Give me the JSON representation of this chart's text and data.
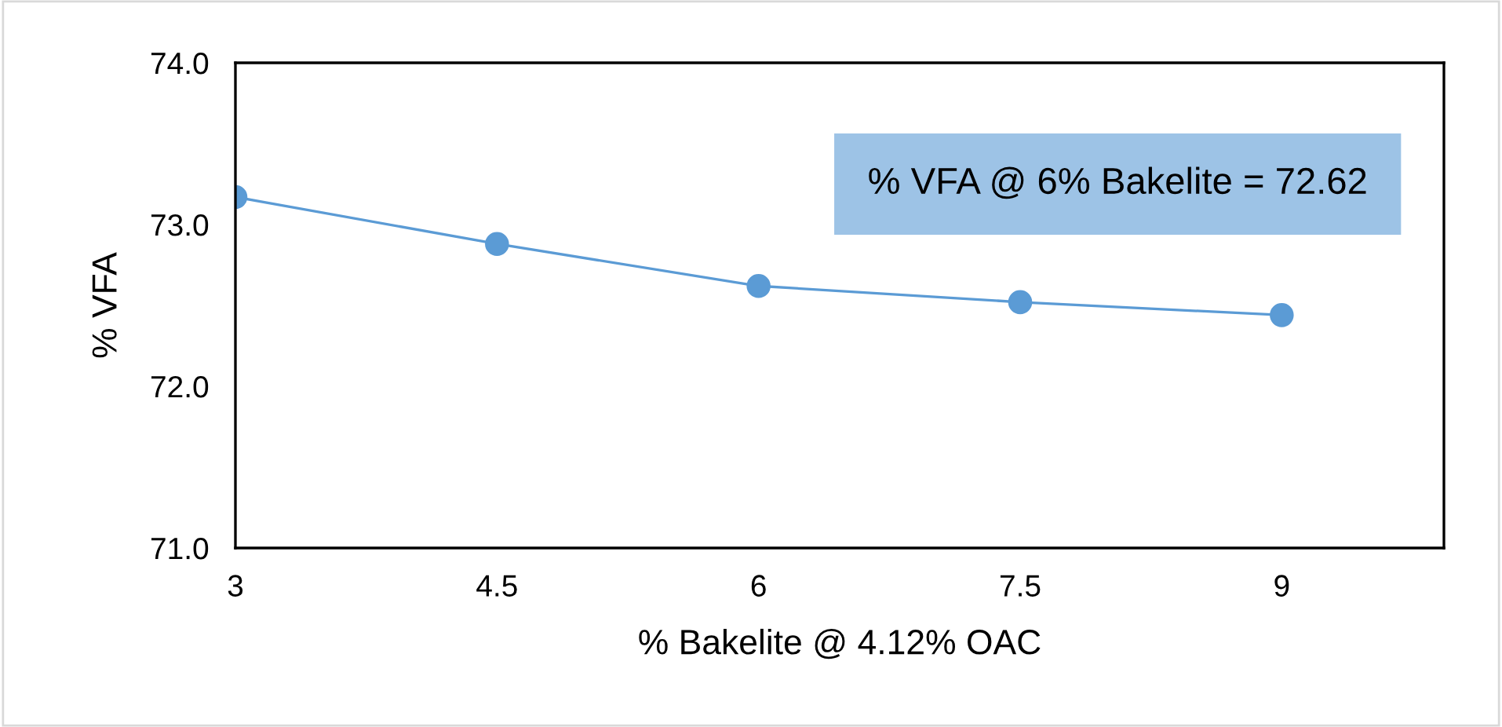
{
  "chart_data": {
    "type": "line",
    "xlabel": "% Bakelite @ 4.12% OAC",
    "ylabel": "% VFA",
    "categories": [
      "3",
      "4.5",
      "6",
      "7.5",
      "9"
    ],
    "series": [
      {
        "color": "#5b9bd5",
        "values": [
          73.17,
          72.88,
          72.62,
          72.52,
          72.44
        ]
      }
    ],
    "ylim": [
      71.0,
      74.0
    ],
    "yticks": [
      {
        "value": 71,
        "label": "71.0"
      },
      {
        "value": 72,
        "label": "72.0"
      },
      {
        "value": 73,
        "label": "73.0"
      },
      {
        "value": 74,
        "label": "74.0"
      }
    ],
    "marker": "circle",
    "grid": false,
    "legend": false,
    "annotations": [
      "% VFA @ 6% Bakelite = 72.62"
    ]
  }
}
